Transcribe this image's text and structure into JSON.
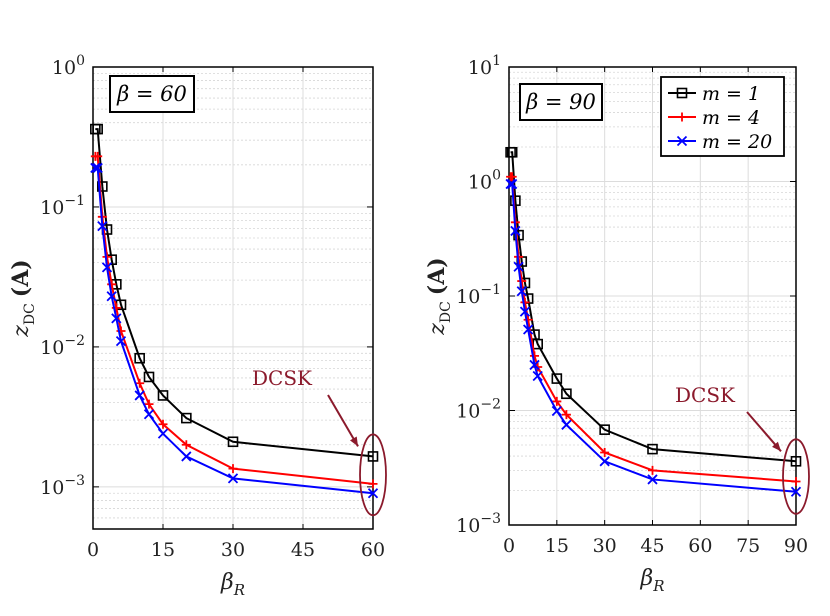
{
  "chart_data": [
    {
      "type": "line",
      "yscale": "log",
      "box_label": "β = 60",
      "xlabel": "β_R",
      "xlabel_main": "β",
      "xlabel_sub": "R",
      "ylabel_main": "z",
      "ylabel_sub": "DC",
      "ylabel_unit": "(A)",
      "xlim": [
        0,
        60
      ],
      "ylim": [
        0.0005,
        1
      ],
      "xticks": [
        0,
        15,
        30,
        45,
        60
      ],
      "yticks": [
        0.001,
        0.01,
        0.1,
        1
      ],
      "ytick_labels": [
        {
          "base": "10",
          "exp": "−3"
        },
        {
          "base": "10",
          "exp": "−2"
        },
        {
          "base": "10",
          "exp": "−1"
        },
        {
          "base": "10",
          "exp": "0"
        }
      ],
      "annotation": {
        "text": "DCSK",
        "target_x": 60
      },
      "series": [
        {
          "name": "m = 1",
          "color": "#000000",
          "marker": "square",
          "x": [
            0.5,
            1,
            2,
            3,
            4,
            5,
            6,
            10,
            12,
            15,
            20,
            30,
            60
          ],
          "values": [
            0.36,
            0.36,
            0.14,
            0.069,
            0.042,
            0.028,
            0.02,
            0.0083,
            0.0061,
            0.0045,
            0.0031,
            0.0021,
            0.00165
          ]
        },
        {
          "name": "m = 4",
          "color": "#ff0000",
          "marker": "plus",
          "x": [
            0.5,
            1,
            2,
            3,
            4,
            5,
            6,
            10,
            12,
            15,
            20,
            30,
            60
          ],
          "values": [
            0.23,
            0.23,
            0.085,
            0.044,
            0.028,
            0.019,
            0.013,
            0.0055,
            0.0039,
            0.0028,
            0.002,
            0.00135,
            0.00105
          ]
        },
        {
          "name": "m = 20",
          "color": "#0000ff",
          "marker": "x",
          "x": [
            0.5,
            1,
            2,
            3,
            4,
            5,
            6,
            10,
            12,
            15,
            20,
            30,
            60
          ],
          "values": [
            0.19,
            0.19,
            0.073,
            0.037,
            0.023,
            0.016,
            0.011,
            0.0045,
            0.0033,
            0.0024,
            0.00165,
            0.00115,
            0.0009
          ]
        }
      ]
    },
    {
      "type": "line",
      "yscale": "log",
      "box_label": "β = 90",
      "xlabel": "β_R",
      "xlabel_main": "β",
      "xlabel_sub": "R",
      "ylabel_main": "z",
      "ylabel_sub": "DC",
      "ylabel_unit": "(A)",
      "xlim": [
        0,
        90
      ],
      "ylim": [
        0.001,
        10
      ],
      "xticks": [
        0,
        15,
        30,
        45,
        60,
        75,
        90
      ],
      "yticks": [
        0.001,
        0.01,
        0.1,
        1,
        10
      ],
      "ytick_labels": [
        {
          "base": "10",
          "exp": "−3"
        },
        {
          "base": "10",
          "exp": "−2"
        },
        {
          "base": "10",
          "exp": "−1"
        },
        {
          "base": "10",
          "exp": "0"
        },
        {
          "base": "10",
          "exp": "1"
        }
      ],
      "legend": {
        "position": "top-right",
        "entries": [
          "m = 1",
          "m = 4",
          "m = 20"
        ]
      },
      "annotation": {
        "text": "DCSK",
        "target_x": 90
      },
      "series": [
        {
          "name": "m = 1",
          "color": "#000000",
          "marker": "square",
          "x": [
            0.5,
            1,
            2,
            3,
            4,
            5,
            6,
            8,
            9,
            15,
            18,
            30,
            45,
            90
          ],
          "values": [
            1.8,
            1.8,
            0.68,
            0.34,
            0.2,
            0.13,
            0.095,
            0.046,
            0.038,
            0.019,
            0.014,
            0.0068,
            0.0046,
            0.0036
          ]
        },
        {
          "name": "m = 4",
          "color": "#ff0000",
          "marker": "plus",
          "x": [
            0.5,
            1,
            2,
            3,
            4,
            5,
            6,
            8,
            9,
            15,
            18,
            30,
            45,
            90
          ],
          "values": [
            1.1,
            1.1,
            0.44,
            0.22,
            0.135,
            0.088,
            0.062,
            0.03,
            0.024,
            0.012,
            0.0092,
            0.0043,
            0.003,
            0.0024
          ]
        },
        {
          "name": "m = 20",
          "color": "#0000ff",
          "marker": "x",
          "x": [
            0.5,
            1,
            2,
            3,
            4,
            5,
            6,
            8,
            9,
            15,
            18,
            30,
            45,
            90
          ],
          "values": [
            0.95,
            0.95,
            0.37,
            0.18,
            0.11,
            0.073,
            0.051,
            0.025,
            0.02,
            0.0099,
            0.0075,
            0.0036,
            0.0025,
            0.00195
          ]
        }
      ]
    }
  ]
}
